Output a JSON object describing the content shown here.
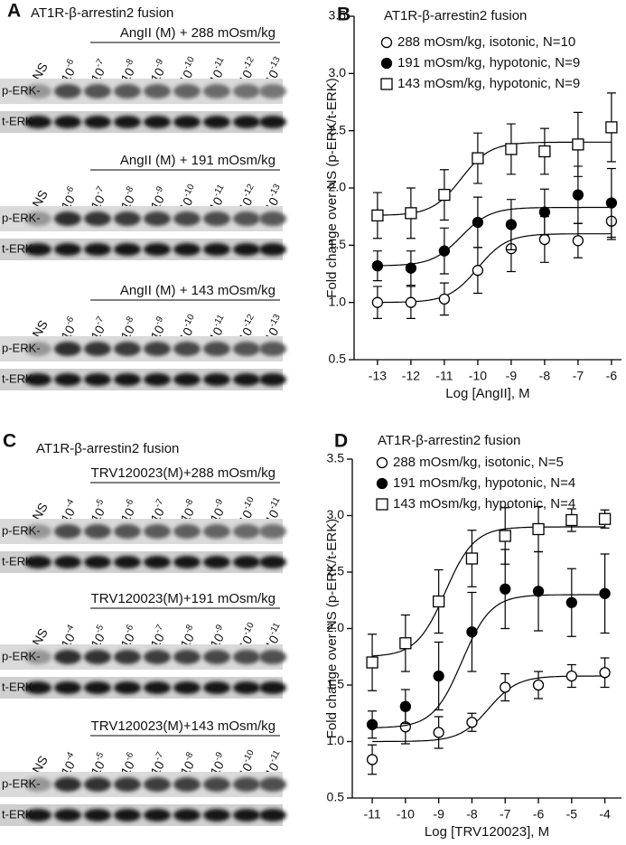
{
  "panels": [
    {
      "letter": "A",
      "heading": "AT1R-β-arrestin2 fusion",
      "blocks": [
        {
          "title": "AngII (M) + 288 mOsm/kg",
          "lanes": [
            "NS",
            {
              "base": "10",
              "exp": "-6"
            },
            {
              "base": "10",
              "exp": "-7"
            },
            {
              "base": "10",
              "exp": "-8"
            },
            {
              "base": "10",
              "exp": "-9"
            },
            {
              "base": "10",
              "exp": "-10"
            },
            {
              "base": "10",
              "exp": "-11"
            },
            {
              "base": "10",
              "exp": "-12"
            },
            {
              "base": "10",
              "exp": "-13"
            }
          ],
          "rows": [
            "p-ERK-",
            "t-ERK-"
          ]
        },
        {
          "title": "AngII (M) + 191 mOsm/kg",
          "lanes": [
            "NS",
            {
              "base": "10",
              "exp": "-6"
            },
            {
              "base": "10",
              "exp": "-7"
            },
            {
              "base": "10",
              "exp": "-8"
            },
            {
              "base": "10",
              "exp": "-9"
            },
            {
              "base": "10",
              "exp": "-10"
            },
            {
              "base": "10",
              "exp": "-11"
            },
            {
              "base": "10",
              "exp": "-12"
            },
            {
              "base": "10",
              "exp": "-13"
            }
          ],
          "rows": [
            "p-ERK-",
            "t-ERK-"
          ]
        },
        {
          "title": "AngII (M) + 143 mOsm/kg",
          "lanes": [
            "NS",
            {
              "base": "10",
              "exp": "-6"
            },
            {
              "base": "10",
              "exp": "-7"
            },
            {
              "base": "10",
              "exp": "-8"
            },
            {
              "base": "10",
              "exp": "-9"
            },
            {
              "base": "10",
              "exp": "-10"
            },
            {
              "base": "10",
              "exp": "-11"
            },
            {
              "base": "10",
              "exp": "-12"
            },
            {
              "base": "10",
              "exp": "-13"
            }
          ],
          "rows": [
            "p-ERK-",
            "t-ERK-"
          ]
        }
      ]
    },
    {
      "letter": "C",
      "heading": "AT1R-β-arrestin2 fusion",
      "blocks": [
        {
          "title": "TRV120023(M)+288 mOsm/kg",
          "lanes": [
            "NS",
            {
              "base": "10",
              "exp": "-4"
            },
            {
              "base": "10",
              "exp": "-5"
            },
            {
              "base": "10",
              "exp": "-6"
            },
            {
              "base": "10",
              "exp": "-7"
            },
            {
              "base": "10",
              "exp": "-8"
            },
            {
              "base": "10",
              "exp": "-9"
            },
            {
              "base": "10",
              "exp": "-10"
            },
            {
              "base": "10",
              "exp": "-11"
            }
          ],
          "rows": [
            "p-ERK-",
            "t-ERK-"
          ]
        },
        {
          "title": "TRV120023(M)+191 mOsm/kg",
          "lanes": [
            "NS",
            {
              "base": "10",
              "exp": "-4"
            },
            {
              "base": "10",
              "exp": "-5"
            },
            {
              "base": "10",
              "exp": "-6"
            },
            {
              "base": "10",
              "exp": "-7"
            },
            {
              "base": "10",
              "exp": "-8"
            },
            {
              "base": "10",
              "exp": "-9"
            },
            {
              "base": "10",
              "exp": "-10"
            },
            {
              "base": "10",
              "exp": "-11"
            }
          ],
          "rows": [
            "p-ERK-",
            "t-ERK-"
          ]
        },
        {
          "title": "TRV120023(M)+143 mOsm/kg",
          "lanes": [
            "NS",
            {
              "base": "10",
              "exp": "-4"
            },
            {
              "base": "10",
              "exp": "-5"
            },
            {
              "base": "10",
              "exp": "-6"
            },
            {
              "base": "10",
              "exp": "-7"
            },
            {
              "base": "10",
              "exp": "-8"
            },
            {
              "base": "10",
              "exp": "-9"
            },
            {
              "base": "10",
              "exp": "-10"
            },
            {
              "base": "10",
              "exp": "-11"
            }
          ],
          "rows": [
            "p-ERK-",
            "t-ERK-"
          ]
        }
      ]
    }
  ],
  "chart_data": [
    {
      "type": "scatter",
      "letter": "B",
      "subtitle": "AT1R-β-arrestin2 fusion",
      "x_label": "Log [AngII], M",
      "y_label": "Fold change over NS (p-ERK/t-ERK)",
      "x": [
        -13,
        -12,
        -11,
        -10,
        -9,
        -8,
        -7,
        -6
      ],
      "xlim": [
        -13.7,
        -5.7
      ],
      "xticks": [
        -13,
        -12,
        -11,
        -10,
        -9,
        -8,
        -7,
        -6
      ],
      "ylim": [
        0.5,
        3.5
      ],
      "yticks": [
        0.5,
        {
          "value": 1,
          "label": "1.0"
        },
        1.5,
        {
          "value": 2,
          "label": "2.0"
        },
        2.5,
        {
          "value": 3,
          "label": "3.0"
        },
        3.5
      ],
      "series": [
        {
          "name": "288 mOsm/kg, isotonic, N=10",
          "marker": "open-circle",
          "color": "#000000",
          "values": [
            1.0,
            1.0,
            1.03,
            1.28,
            1.47,
            1.55,
            1.54,
            1.71
          ],
          "errors": [
            0.14,
            0.14,
            0.14,
            0.2,
            0.2,
            0.2,
            0.15,
            0.16
          ],
          "fit": {
            "bottom": 1.0,
            "top": 1.6,
            "log_ec50": -10.0
          }
        },
        {
          "name": "191 mOsm/kg, hypotonic, N=9",
          "marker": "filled-circle",
          "color": "#000000",
          "values": [
            1.32,
            1.3,
            1.45,
            1.7,
            1.68,
            1.79,
            1.94,
            1.87
          ],
          "errors": [
            0.13,
            0.15,
            0.2,
            0.22,
            0.22,
            0.2,
            0.25,
            0.3
          ],
          "fit": {
            "bottom": 1.32,
            "top": 1.83,
            "log_ec50": -10.5
          }
        },
        {
          "name": "143 mOsm/kg, hypotonic, N=9",
          "marker": "open-square",
          "color": "#000000",
          "values": [
            1.76,
            1.78,
            1.94,
            2.26,
            2.34,
            2.32,
            2.38,
            2.53
          ],
          "errors": [
            0.2,
            0.22,
            0.22,
            0.22,
            0.22,
            0.2,
            0.28,
            0.3
          ],
          "fit": {
            "bottom": 1.76,
            "top": 2.4,
            "log_ec50": -10.5
          }
        }
      ]
    },
    {
      "type": "scatter",
      "letter": "D",
      "subtitle": "AT1R-β-arrestin2 fusion",
      "x_label": "Log [TRV120023], M",
      "y_label": "Fold change over NS (p-ERK/t-ERK)",
      "x": [
        -11,
        -10,
        -9,
        -8,
        -7,
        -6,
        -5,
        -4
      ],
      "xlim": [
        -11.6,
        -3.5
      ],
      "xticks": [
        -11,
        -10,
        -9,
        -8,
        -7,
        -6,
        -5,
        -4
      ],
      "ylim": [
        0.5,
        3.5
      ],
      "yticks": [
        0.5,
        {
          "value": 1,
          "label": "1.0"
        },
        1.5,
        {
          "value": 2,
          "label": "2.0"
        },
        2.5,
        {
          "value": 3,
          "label": "3.0"
        },
        3.5
      ],
      "series": [
        {
          "name": "288 mOsm/kg, isotonic, N=5",
          "marker": "open-circle",
          "color": "#000000",
          "values": [
            0.84,
            1.13,
            1.08,
            1.17,
            1.48,
            1.5,
            1.58,
            1.61
          ],
          "errors": [
            0.13,
            0.15,
            0.14,
            0.08,
            0.12,
            0.12,
            0.1,
            0.13
          ],
          "fit": {
            "bottom": 1.0,
            "top": 1.58,
            "log_ec50": -7.5
          }
        },
        {
          "name": "191 mOsm/kg, hypotonic, N=4",
          "marker": "filled-circle",
          "color": "#000000",
          "values": [
            1.15,
            1.31,
            1.58,
            1.97,
            2.35,
            2.33,
            2.23,
            2.31
          ],
          "errors": [
            0.12,
            0.15,
            0.3,
            0.35,
            0.35,
            0.35,
            0.3,
            0.35
          ],
          "fit": {
            "bottom": 1.12,
            "top": 2.3,
            "log_ec50": -8.3
          }
        },
        {
          "name": "143 mOsm/kg, hypotonic, N=4",
          "marker": "open-square",
          "color": "#000000",
          "values": [
            1.7,
            1.87,
            2.24,
            2.62,
            2.82,
            2.88,
            2.96,
            2.97
          ],
          "errors": [
            0.25,
            0.25,
            0.28,
            0.25,
            0.25,
            0.2,
            0.1,
            0.08
          ],
          "fit": {
            "bottom": 1.75,
            "top": 2.9,
            "log_ec50": -8.8
          }
        }
      ]
    }
  ]
}
